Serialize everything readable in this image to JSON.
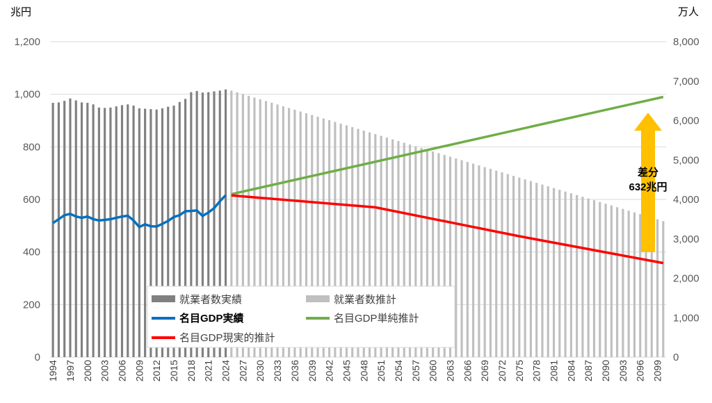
{
  "chart_data": {
    "type": "bar+line",
    "title": "",
    "left_axis": {
      "unit_label": "兆円",
      "ylim": [
        0,
        1200
      ],
      "ticks": [
        "0",
        "200",
        "400",
        "600",
        "800",
        "1,000",
        "1,200"
      ]
    },
    "right_axis": {
      "unit_label": "万人",
      "ylim": [
        0,
        8000
      ],
      "ticks": [
        "0",
        "1,000",
        "2,000",
        "3,000",
        "4,000",
        "5,000",
        "6,000",
        "7,000",
        "8,000"
      ]
    },
    "x_range": [
      1994,
      2100
    ],
    "x_tick_labels": [
      "1994",
      "1997",
      "2000",
      "2003",
      "2006",
      "2009",
      "2012",
      "2015",
      "2018",
      "2021",
      "2024",
      "2027",
      "2030",
      "2033",
      "2036",
      "2039",
      "2042",
      "2045",
      "2048",
      "2051",
      "2054",
      "2057",
      "2060",
      "2063",
      "2066",
      "2069",
      "2072",
      "2075",
      "2078",
      "2081",
      "2084",
      "2087",
      "2090",
      "2093",
      "2096",
      "2099"
    ],
    "grid": true,
    "legend_position": "bottom-center",
    "series": [
      {
        "name": "就業者数実績",
        "kind": "bar",
        "axis": "right",
        "color": "#808080",
        "years": [
          1994,
          2024
        ],
        "values": [
          6450,
          6460,
          6500,
          6560,
          6510,
          6460,
          6450,
          6410,
          6330,
          6320,
          6330,
          6360,
          6390,
          6410,
          6380,
          6310,
          6300,
          6290,
          6280,
          6310,
          6350,
          6380,
          6470,
          6550,
          6720,
          6750,
          6710,
          6720,
          6740,
          6760,
          6790
        ]
      },
      {
        "name": "就業者数推計",
        "kind": "bar",
        "axis": "right",
        "color": "#bfbfbf",
        "years": [
          2025,
          2100
        ],
        "start_value": 6760,
        "end_value": 3450
      },
      {
        "name": "名目GDP実績",
        "kind": "line",
        "axis": "left",
        "color": "#0070c0",
        "years": [
          1994,
          2024
        ],
        "values": [
          510,
          525,
          540,
          545,
          535,
          530,
          535,
          525,
          520,
          522,
          525,
          530,
          535,
          538,
          520,
          495,
          505,
          498,
          497,
          507,
          518,
          533,
          540,
          555,
          556,
          558,
          537,
          550,
          567,
          593,
          616
        ]
      },
      {
        "name": "名目GDP単純推計",
        "kind": "line",
        "axis": "left",
        "color": "#70ad47",
        "points": [
          [
            2025,
            620
          ],
          [
            2100,
            990
          ]
        ]
      },
      {
        "name": "名目GDP現実的推計",
        "kind": "line",
        "axis": "left",
        "color": "#ff0000",
        "points": [
          [
            2025,
            615
          ],
          [
            2050,
            570
          ],
          [
            2075,
            460
          ],
          [
            2100,
            358
          ]
        ]
      }
    ],
    "annotation": {
      "line1": "差分",
      "line2": "632兆円",
      "arrow_from": 400,
      "arrow_to": 930,
      "arrow_color": "#ffc000"
    }
  }
}
